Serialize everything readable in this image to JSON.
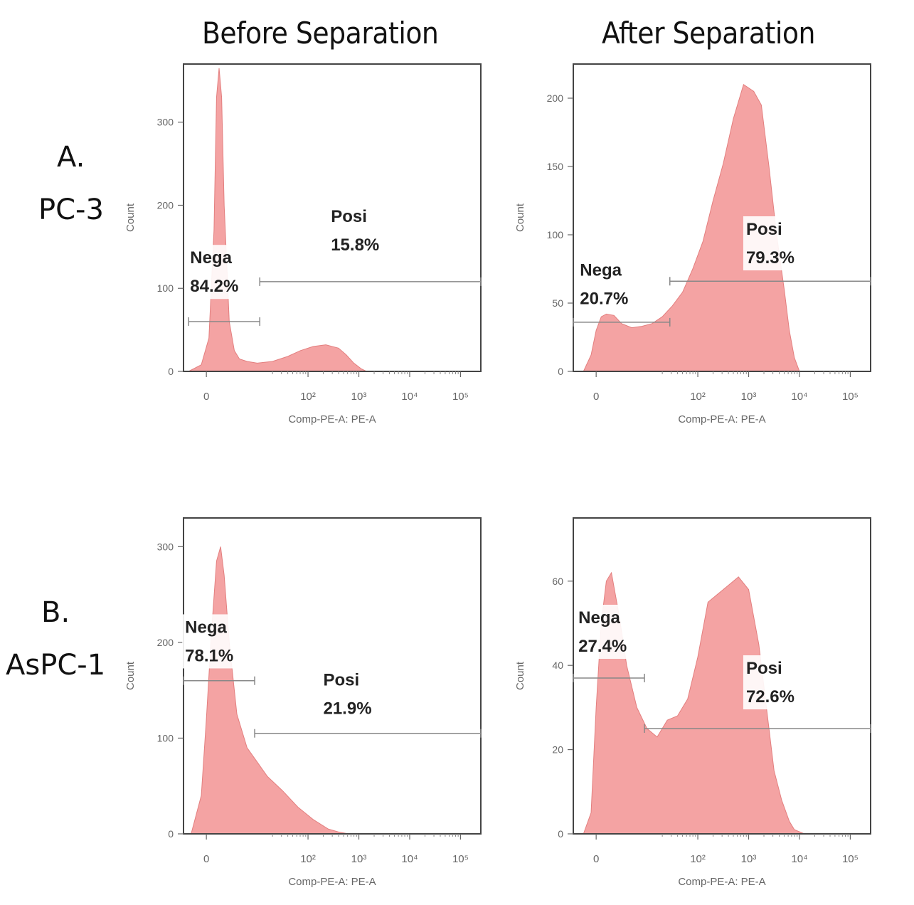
{
  "column_titles": [
    "Before Separation",
    "After Separation"
  ],
  "rows": [
    {
      "letter": "A.",
      "name": "PC-3"
    },
    {
      "letter": "B.",
      "name": "AsPC-1"
    }
  ],
  "colors": {
    "fill": "#f4a3a3",
    "stroke": "#e37f7f",
    "gate": "#888888",
    "frame": "#444444"
  },
  "chart_data": [
    {
      "type": "area",
      "row": 0,
      "col": 0,
      "xlabel": "Comp-PE-A: PE-A",
      "ylabel": "Count",
      "xticks": [
        {
          "pos": 0,
          "label": "0"
        },
        {
          "pos": 2,
          "label": "10²"
        },
        {
          "pos": 3,
          "label": "10³"
        },
        {
          "pos": 4,
          "label": "10⁴"
        },
        {
          "pos": 5,
          "label": "10⁵"
        }
      ],
      "xlim": [
        -0.45,
        5.4
      ],
      "ylim": [
        0,
        370
      ],
      "yticks": [
        0,
        100,
        200,
        300
      ],
      "x": [
        -0.35,
        -0.1,
        0.05,
        0.15,
        0.2,
        0.25,
        0.3,
        0.35,
        0.45,
        0.55,
        0.65,
        0.8,
        1.0,
        1.3,
        1.6,
        1.85,
        2.1,
        2.35,
        2.6,
        2.75,
        2.9,
        3.05,
        3.15
      ],
      "y": [
        0,
        8,
        40,
        170,
        330,
        365,
        330,
        200,
        60,
        25,
        15,
        12,
        10,
        12,
        18,
        25,
        30,
        32,
        28,
        20,
        10,
        3,
        0
      ],
      "gates": [
        {
          "name": "Nega",
          "percent": "84.2%",
          "x1": -0.35,
          "x2": 1.05,
          "y": 60,
          "label_x": -0.32,
          "label_y": 130
        },
        {
          "name": "Posi",
          "percent": "15.8%",
          "x1": 1.05,
          "x2": 5.4,
          "y": 108,
          "label_x": 2.45,
          "label_y": 180
        }
      ]
    },
    {
      "type": "area",
      "row": 0,
      "col": 1,
      "xlabel": "Comp-PE-A: PE-A",
      "ylabel": "Count",
      "xticks": [
        {
          "pos": 0,
          "label": "0"
        },
        {
          "pos": 2,
          "label": "10²"
        },
        {
          "pos": 3,
          "label": "10³"
        },
        {
          "pos": 4,
          "label": "10⁴"
        },
        {
          "pos": 5,
          "label": "10⁵"
        }
      ],
      "xlim": [
        -0.45,
        5.4
      ],
      "ylim": [
        0,
        225
      ],
      "yticks": [
        0,
        50,
        100,
        150,
        200
      ],
      "x": [
        -0.25,
        -0.1,
        0.0,
        0.1,
        0.2,
        0.35,
        0.5,
        0.7,
        0.9,
        1.1,
        1.3,
        1.5,
        1.7,
        1.9,
        2.1,
        2.3,
        2.5,
        2.7,
        2.9,
        3.1,
        3.25,
        3.4,
        3.55,
        3.7,
        3.8,
        3.9,
        4.0
      ],
      "y": [
        0,
        12,
        30,
        40,
        42,
        41,
        35,
        32,
        33,
        35,
        40,
        48,
        58,
        75,
        95,
        125,
        152,
        185,
        210,
        205,
        195,
        150,
        100,
        60,
        30,
        10,
        0
      ],
      "gates": [
        {
          "name": "Nega",
          "percent": "20.7%",
          "x1": -0.45,
          "x2": 1.45,
          "y": 36,
          "label_x": -0.32,
          "label_y": 70
        },
        {
          "name": "Posi",
          "percent": "79.3%",
          "x1": 1.45,
          "x2": 5.4,
          "y": 66,
          "label_x": 2.95,
          "label_y": 100
        }
      ]
    },
    {
      "type": "area",
      "row": 1,
      "col": 0,
      "xlabel": "Comp-PE-A: PE-A",
      "ylabel": "Count",
      "xticks": [
        {
          "pos": 0,
          "label": "0"
        },
        {
          "pos": 2,
          "label": "10²"
        },
        {
          "pos": 3,
          "label": "10³"
        },
        {
          "pos": 4,
          "label": "10⁴"
        },
        {
          "pos": 5,
          "label": "10⁵"
        }
      ],
      "xlim": [
        -0.45,
        5.4
      ],
      "ylim": [
        0,
        330
      ],
      "yticks": [
        0,
        100,
        200,
        300
      ],
      "x": [
        -0.3,
        -0.1,
        0.0,
        0.1,
        0.2,
        0.28,
        0.35,
        0.45,
        0.6,
        0.8,
        1.0,
        1.2,
        1.5,
        1.8,
        2.1,
        2.4,
        2.6,
        2.8
      ],
      "y": [
        0,
        40,
        120,
        210,
        285,
        300,
        270,
        200,
        125,
        90,
        75,
        60,
        45,
        28,
        15,
        5,
        2,
        0
      ],
      "gates": [
        {
          "name": "Nega",
          "percent": "78.1%",
          "x1": -0.45,
          "x2": 0.95,
          "y": 160,
          "label_x": -0.42,
          "label_y": 210
        },
        {
          "name": "Posi",
          "percent": "21.9%",
          "x1": 0.95,
          "x2": 5.4,
          "y": 105,
          "label_x": 2.3,
          "label_y": 155
        }
      ]
    },
    {
      "type": "area",
      "row": 1,
      "col": 1,
      "xlabel": "Comp-PE-A: PE-A",
      "ylabel": "Count",
      "xticks": [
        {
          "pos": 0,
          "label": "0"
        },
        {
          "pos": 2,
          "label": "10²"
        },
        {
          "pos": 3,
          "label": "10³"
        },
        {
          "pos": 4,
          "label": "10⁴"
        },
        {
          "pos": 5,
          "label": "10⁵"
        }
      ],
      "xlim": [
        -0.45,
        5.4
      ],
      "ylim": [
        0,
        75
      ],
      "yticks": [
        0,
        20,
        40,
        60
      ],
      "x": [
        -0.25,
        -0.1,
        0.0,
        0.1,
        0.2,
        0.3,
        0.45,
        0.6,
        0.8,
        1.0,
        1.2,
        1.4,
        1.6,
        1.8,
        2.0,
        2.2,
        2.4,
        2.6,
        2.8,
        3.0,
        3.2,
        3.35,
        3.5,
        3.65,
        3.8,
        3.9,
        4.0,
        4.1
      ],
      "y": [
        0,
        5,
        30,
        50,
        60,
        62,
        52,
        40,
        30,
        25,
        23,
        27,
        28,
        32,
        42,
        55,
        57,
        59,
        61,
        58,
        45,
        30,
        15,
        8,
        3,
        1,
        0.5,
        0
      ],
      "gates": [
        {
          "name": "Nega",
          "percent": "27.4%",
          "x1": -0.45,
          "x2": 0.95,
          "y": 37,
          "label_x": -0.35,
          "label_y": 50
        },
        {
          "name": "Posi",
          "percent": "72.6%",
          "x1": 0.95,
          "x2": 5.4,
          "y": 25,
          "label_x": 2.95,
          "label_y": 38
        }
      ]
    }
  ]
}
